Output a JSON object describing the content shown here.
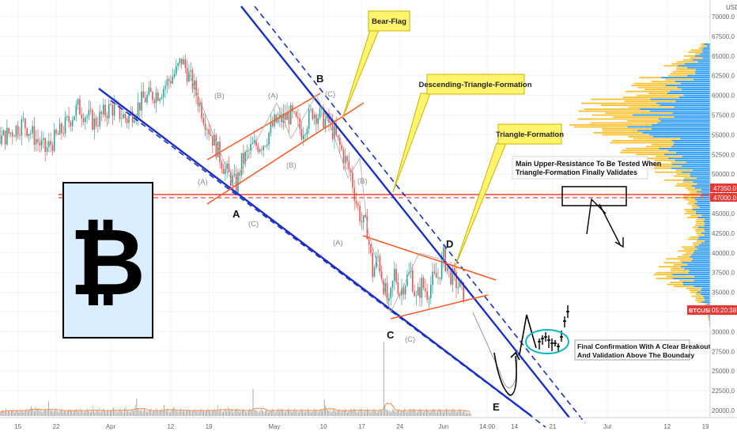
{
  "chart_data": {
    "type": "candlestick",
    "symbol_tag": "BTCUSD",
    "countdown": "05:20:38",
    "currency": "USD",
    "y_ticks": [
      "70000.0",
      "67500.0",
      "65000.0",
      "62500.0",
      "60000.0",
      "57500.0",
      "55000.0",
      "52500.0",
      "50000.0",
      "47500.0",
      "45000.0",
      "42500.0",
      "40000.0",
      "37500.0",
      "35000.0",
      "32500.0",
      "30000.0",
      "27500.0",
      "25000.0",
      "22500.0",
      "20000.0"
    ],
    "ylim": [
      19500,
      71500
    ],
    "level_labels": [
      "47350.0",
      "47000.0"
    ],
    "level_values": [
      47350,
      47000
    ],
    "last_price": 35650,
    "x_ticks": [
      "15",
      "22",
      "Apr",
      "12",
      "19",
      "May",
      "10",
      "17",
      "24",
      "Jun",
      "14:00",
      "14",
      "21",
      "Jul",
      "12",
      "19"
    ],
    "x_tick_positions_days": [
      -17,
      -10,
      0,
      11,
      18,
      30,
      39,
      46,
      53,
      61,
      69,
      74,
      81,
      91,
      102,
      109
    ],
    "price_path": [
      [
        -32,
        55500
      ],
      [
        -28,
        53000
      ],
      [
        -24,
        57000
      ],
      [
        -20,
        54500
      ],
      [
        -16,
        56500
      ],
      [
        -12,
        53000
      ],
      [
        -9,
        55500
      ],
      [
        -6,
        58500
      ],
      [
        -3,
        56500
      ],
      [
        0,
        58500
      ],
      [
        3,
        57000
      ],
      [
        6,
        59500
      ],
      [
        9,
        60500
      ],
      [
        12,
        63000
      ],
      [
        13,
        64500
      ],
      [
        15,
        61500
      ],
      [
        17,
        57500
      ],
      [
        19,
        54000
      ],
      [
        21,
        50500
      ],
      [
        23,
        48500
      ],
      [
        24,
        51500
      ],
      [
        26,
        53500
      ],
      [
        28,
        54000
      ],
      [
        30,
        56500
      ],
      [
        33,
        57500
      ],
      [
        35,
        55500
      ],
      [
        37,
        58000
      ],
      [
        40,
        56500
      ],
      [
        42,
        53500
      ],
      [
        44,
        50000
      ],
      [
        45,
        46500
      ],
      [
        46,
        44000
      ],
      [
        47,
        43000
      ],
      [
        48,
        37500
      ],
      [
        49,
        39500
      ],
      [
        50,
        36000
      ],
      [
        51,
        33000
      ],
      [
        52,
        37500
      ],
      [
        53,
        35000
      ],
      [
        54,
        36500
      ],
      [
        55,
        37500
      ],
      [
        56,
        34000
      ],
      [
        57,
        36000
      ],
      [
        58,
        35000
      ],
      [
        59,
        36500
      ],
      [
        60,
        37000
      ],
      [
        61,
        39500
      ],
      [
        62,
        37500
      ],
      [
        63,
        36500
      ],
      [
        65,
        34500
      ]
    ],
    "volume": [
      3,
      4,
      5,
      3,
      4,
      6,
      3,
      5,
      4,
      3,
      5,
      4,
      6,
      3,
      4,
      5,
      4,
      3,
      6,
      4,
      5,
      3,
      4,
      5,
      6,
      4,
      5,
      6,
      8,
      6,
      5,
      4,
      7,
      6,
      5,
      6,
      4,
      5,
      3,
      4,
      5,
      6,
      4,
      5,
      12,
      6,
      4,
      5,
      3,
      4,
      6,
      5,
      4,
      3,
      5,
      4,
      6,
      3,
      5,
      4,
      3,
      4,
      5,
      6,
      4,
      5,
      3,
      4,
      5,
      6,
      4,
      5,
      3,
      6,
      4,
      5,
      3,
      4,
      5,
      6,
      4,
      5,
      3,
      4,
      9,
      5,
      3,
      4,
      5,
      4,
      6,
      3,
      4,
      5,
      6,
      4,
      3,
      4,
      5,
      3,
      4,
      5,
      6,
      7,
      4,
      5,
      3,
      4,
      5,
      6,
      4,
      5,
      3,
      6,
      8,
      5,
      4,
      5,
      3,
      4,
      6,
      4,
      5,
      9,
      14,
      6,
      5,
      4,
      5,
      3,
      4,
      6,
      5,
      4,
      3,
      4,
      5,
      6,
      3,
      4,
      5,
      4,
      6,
      5,
      3,
      4,
      5,
      6,
      4,
      9,
      5,
      4,
      6,
      5,
      3,
      4,
      5,
      6,
      7,
      5,
      4,
      5,
      3,
      4,
      6,
      5,
      4,
      5,
      3,
      4,
      5,
      6,
      4,
      5,
      3,
      4,
      5,
      6,
      4,
      5,
      3,
      4,
      5,
      6,
      4,
      5,
      3,
      4,
      5,
      6,
      4,
      5,
      3,
      4,
      5,
      6,
      4,
      5,
      9,
      4,
      6,
      5,
      3,
      4,
      6,
      5,
      4,
      8,
      5,
      4,
      6,
      5,
      3,
      4,
      5,
      6,
      4,
      5,
      3,
      4,
      5,
      6,
      5,
      4,
      3,
      4,
      5,
      6,
      4,
      5,
      22,
      6,
      5,
      4,
      5,
      3,
      4,
      6,
      5,
      4,
      3,
      4,
      5,
      6,
      3,
      4,
      5,
      4,
      6,
      5,
      3,
      4,
      5,
      6,
      4,
      5,
      6,
      5,
      4,
      3,
      4,
      5,
      6,
      4,
      5,
      3,
      4,
      5,
      6,
      4,
      5,
      3,
      4,
      5,
      6,
      4,
      5,
      3,
      4,
      5,
      6,
      4,
      5,
      3,
      4,
      5,
      6,
      4,
      5,
      3,
      4,
      5,
      6,
      4,
      5,
      13,
      8,
      6,
      5,
      4,
      5,
      3,
      4,
      6,
      5,
      4,
      3,
      4,
      5,
      6,
      3,
      4,
      5,
      4,
      6,
      5,
      3,
      4,
      5,
      6,
      4,
      5,
      6,
      5,
      4,
      3,
      4,
      5,
      6,
      4,
      5,
      3,
      4,
      5,
      6,
      4,
      5,
      3,
      4,
      5,
      6,
      4,
      5,
      3,
      4,
      5,
      6,
      4,
      5,
      60,
      9,
      6,
      5,
      4,
      5,
      3,
      4,
      6,
      5,
      4,
      3,
      4,
      5,
      6,
      3,
      4,
      5,
      4,
      6,
      5,
      3,
      4,
      5,
      6,
      4,
      5,
      6,
      5,
      4,
      3,
      4,
      5,
      6,
      4,
      5,
      3,
      4,
      5,
      6,
      4,
      5,
      3,
      4,
      5,
      6,
      4,
      5,
      3,
      4,
      5,
      6,
      4,
      5,
      3,
      4,
      5,
      6,
      4,
      5,
      3,
      4,
      5,
      6,
      4,
      5,
      3,
      4,
      5,
      6,
      4,
      5,
      3,
      4,
      5,
      2,
      3,
      2,
      3,
      2
    ]
  },
  "annotations": {
    "bear_flag": "Bear-Flag",
    "descending_triangle": "Descending-Triangle-Formation",
    "triangle_formation": "Triangle-Formation",
    "resistance_line1": "Main Upper-Resistance To Be Tested When",
    "resistance_line2": "Triangle-Formation Finally Validates",
    "confirmation_line1": "Final Confirmation With A Clear Breakout",
    "confirmation_line2": "And Validation Above The Boundary",
    "point_a": "A",
    "point_b": "B",
    "point_c": "C",
    "point_d": "D",
    "point_e": "E",
    "wave_a": "(A)",
    "wave_b": "(B)",
    "wave_c": "(C)"
  },
  "colors": {
    "up": "#26a69a",
    "down": "#ef5350",
    "trendline": "#1a2ec9",
    "channel": "#ff5722",
    "resistance": "#f44336",
    "callout_fill": "#fff46b",
    "callout_stroke": "#c8b400",
    "vp_blue": "#2196f3",
    "vp_yellow": "#fbc02d",
    "btc_panel": "#dbeeff",
    "confirm_ellipse": "#11b5c4",
    "tag_red": "#e53935"
  },
  "logo": {
    "symbol": "₿",
    "icon": "bitcoin-logo-icon"
  }
}
